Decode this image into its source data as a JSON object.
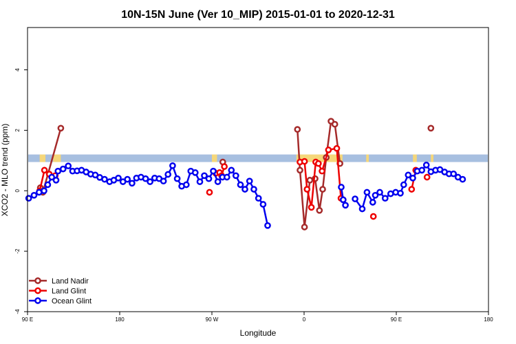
{
  "chart_data": {
    "type": "line",
    "title": "10N-15N June (Ver 10_MIP)   2015-01-01 to 2020-12-31",
    "xlabel": "Longitude",
    "ylabel": "XCO2 - MLO trend (ppm)",
    "xlim": [
      -90,
      270
    ],
    "ylim": [
      -4.0,
      5.4
    ],
    "x_ticks": [
      {
        "value": -90,
        "label": "90 E"
      },
      {
        "value": -18,
        "label": "180"
      },
      {
        "value": 54,
        "label": "90 W"
      },
      {
        "value": 126,
        "label": "0"
      },
      {
        "value": 198,
        "label": "90 E"
      },
      {
        "value": 270,
        "label": "180"
      }
    ],
    "y_ticks": [
      -4,
      -2,
      0,
      2,
      4
    ],
    "grid": false,
    "legend": {
      "placement": "bottom-left"
    },
    "land_band": {
      "y_bottom": 0.95,
      "y_top": 1.2,
      "color": "#a7bfe0",
      "land_color": "#f5d77a"
    },
    "series": [
      {
        "name": "Land Nadir",
        "color": "#a52a2a",
        "segments": [
          [
            [
              -80,
              0.1
            ],
            [
              -78,
              -0.05
            ],
            [
              -64,
              2.07
            ]
          ],
          [
            [
              62.5,
              0.95
            ]
          ],
          [
            [
              120.8,
              2.03
            ],
            [
              122.8,
              0.68
            ],
            [
              126.3,
              -1.2
            ],
            [
              130.5,
              0.35
            ],
            [
              134.6,
              0.4
            ],
            [
              138,
              -0.65
            ],
            [
              140.5,
              0.05
            ],
            [
              143.3,
              1.1
            ],
            [
              147,
              2.3
            ],
            [
              150,
              2.2
            ],
            [
              154,
              0.9
            ]
          ],
          [
            [
              225,
              2.07
            ]
          ]
        ]
      },
      {
        "name": "Land Glint",
        "color": "#ee0000",
        "segments": [
          [
            [
              -80.5,
              0.0
            ],
            [
              -76.8,
              0.68
            ],
            [
              -73,
              0.55
            ],
            [
              -68.4,
              0.5
            ]
          ],
          [
            [
              52.1,
              -0.05
            ]
          ],
          [
            [
              57,
              0.58
            ],
            [
              60,
              0.6
            ]
          ],
          [
            [
              61.6,
              0.5
            ],
            [
              63.7,
              0.8
            ]
          ],
          [
            [
              122.8,
              0.95
            ],
            [
              126.3,
              0.97
            ],
            [
              128.3,
              0.05
            ],
            [
              131.7,
              -0.55
            ],
            [
              135.1,
              0.95
            ],
            [
              137.2,
              0.9
            ],
            [
              140,
              0.65
            ],
            [
              145,
              1.35
            ],
            [
              151.5,
              1.4
            ],
            [
              154.8,
              -0.25
            ],
            [
              156.5,
              -0.3
            ]
          ],
          [
            [
              180.1,
              -0.85
            ]
          ],
          [
            [
              210,
              0.05
            ],
            [
              213.2,
              0.68
            ]
          ],
          [
            [
              222,
              0.45
            ]
          ]
        ]
      },
      {
        "name": "Ocean Glint",
        "color": "#0000ee",
        "segments": [
          [
            [
              -89.1,
              -0.25
            ],
            [
              -84.9,
              -0.15
            ],
            [
              -81,
              -0.05
            ],
            [
              -77.1,
              0.0
            ],
            [
              -74.2,
              0.2
            ],
            [
              -71.1,
              0.45
            ],
            [
              -67.7,
              0.35
            ],
            [
              -66.2,
              0.65
            ],
            [
              -62.2,
              0.72
            ],
            [
              -58.2,
              0.82
            ],
            [
              -54.8,
              0.65
            ],
            [
              -51.3,
              0.66
            ],
            [
              -47.8,
              0.68
            ],
            [
              -44.2,
              0.62
            ],
            [
              -40.7,
              0.55
            ],
            [
              -37.1,
              0.52
            ],
            [
              -33.6,
              0.44
            ],
            [
              -29.8,
              0.38
            ],
            [
              -25.9,
              0.3
            ],
            [
              -22.6,
              0.35
            ],
            [
              -19.1,
              0.42
            ],
            [
              -15.5,
              0.3
            ],
            [
              -12,
              0.38
            ],
            [
              -8.4,
              0.25
            ],
            [
              -4.9,
              0.42
            ],
            [
              -1.4,
              0.45
            ],
            [
              2.2,
              0.4
            ],
            [
              5.7,
              0.3
            ],
            [
              9.3,
              0.42
            ],
            [
              12.8,
              0.4
            ],
            [
              16.2,
              0.32
            ],
            [
              19.7,
              0.54
            ],
            [
              23.3,
              0.83
            ],
            [
              26.9,
              0.4
            ],
            [
              30.4,
              0.15
            ],
            [
              34,
              0.2
            ],
            [
              37.5,
              0.65
            ],
            [
              41,
              0.6
            ],
            [
              44.6,
              0.3
            ],
            [
              48.1,
              0.5
            ],
            [
              51.6,
              0.4
            ],
            [
              55.1,
              0.65
            ],
            [
              58.6,
              0.3
            ],
            [
              62.2,
              0.45
            ],
            [
              65.7,
              0.45
            ],
            [
              69.2,
              0.68
            ],
            [
              72.7,
              0.5
            ],
            [
              76.3,
              0.2
            ],
            [
              79.8,
              0.05
            ],
            [
              83.4,
              0.32
            ],
            [
              86.8,
              0.05
            ],
            [
              90.4,
              -0.25
            ],
            [
              94,
              -0.45
            ],
            [
              97.5,
              -1.15
            ]
          ],
          [
            [
              155,
              0.12
            ],
            [
              156.5,
              -0.3
            ],
            [
              158.3,
              -0.48
            ]
          ],
          [
            [
              165.8,
              -0.27
            ],
            [
              171.4,
              -0.6
            ],
            [
              175.1,
              -0.05
            ],
            [
              179.6,
              -0.38
            ],
            [
              181.6,
              -0.15
            ],
            [
              185.1,
              -0.05
            ],
            [
              189.3,
              -0.25
            ],
            [
              193.6,
              -0.1
            ],
            [
              197.5,
              -0.05
            ],
            [
              201.2,
              -0.08
            ],
            [
              203.8,
              0.2
            ],
            [
              207.3,
              0.52
            ],
            [
              210.9,
              0.42
            ],
            [
              214.4,
              0.65
            ],
            [
              218,
              0.68
            ],
            [
              221.5,
              0.85
            ],
            [
              225,
              0.63
            ],
            [
              228.6,
              0.68
            ],
            [
              232.1,
              0.7
            ],
            [
              235.7,
              0.62
            ],
            [
              239.2,
              0.56
            ],
            [
              242.7,
              0.56
            ],
            [
              246.2,
              0.45
            ],
            [
              249.8,
              0.38
            ]
          ]
        ]
      }
    ]
  }
}
